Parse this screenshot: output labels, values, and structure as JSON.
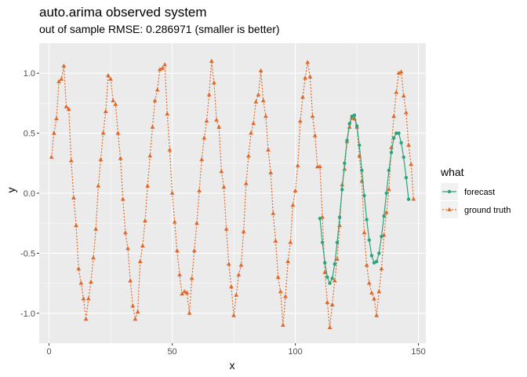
{
  "chart_data": {
    "type": "line",
    "title": "auto.arima observed system",
    "subtitle": "out of sample RMSE: 0.286971 (smaller is better)",
    "xlabel": "x",
    "ylabel": "y",
    "xlim": [
      -4,
      153
    ],
    "ylim": [
      -1.25,
      1.25
    ],
    "x_ticks": [
      0,
      50,
      100,
      150
    ],
    "x_tick_labels": [
      "0",
      "50",
      "100",
      "150"
    ],
    "y_ticks": [
      -1.0,
      -0.5,
      0.0,
      0.5,
      1.0
    ],
    "y_tick_labels": [
      "-1.0",
      "-0.5",
      "0.0",
      "0.5",
      "1.0"
    ],
    "grid": true,
    "legend": {
      "title": "what",
      "position": "right",
      "entries": [
        "forecast",
        "ground truth"
      ]
    },
    "series": [
      {
        "name": "forecast",
        "color": "#2ca47a",
        "marker": "circle",
        "linestyle": "solid",
        "x_start": 110,
        "values": [
          -0.21,
          -0.41,
          -0.58,
          -0.7,
          -0.75,
          -0.71,
          -0.59,
          -0.41,
          -0.2,
          0.03,
          0.25,
          0.44,
          0.58,
          0.64,
          0.65,
          0.56,
          0.4,
          0.19,
          -0.02,
          -0.22,
          -0.39,
          -0.52,
          -0.58,
          -0.57,
          -0.5,
          -0.36,
          -0.19,
          0.0,
          0.19,
          0.34,
          0.46,
          0.5,
          0.5,
          0.42,
          0.3,
          0.13,
          -0.05
        ]
      },
      {
        "name": "ground truth",
        "color": "#e0692a",
        "marker": "triangle",
        "linestyle": "dotted",
        "x_start": 1,
        "values": [
          0.3,
          0.5,
          0.62,
          0.93,
          0.95,
          1.06,
          0.72,
          0.7,
          0.27,
          -0.04,
          -0.27,
          -0.63,
          -0.75,
          -0.88,
          -1.05,
          -0.88,
          -0.74,
          -0.54,
          -0.3,
          0.06,
          0.28,
          0.5,
          0.68,
          0.98,
          0.95,
          0.77,
          0.74,
          0.5,
          0.29,
          -0.05,
          -0.33,
          -0.46,
          -0.73,
          -0.94,
          -1.05,
          -0.99,
          -0.57,
          -0.44,
          -0.23,
          0.06,
          0.31,
          0.55,
          0.77,
          0.86,
          1.03,
          1.04,
          1.07,
          0.66,
          0.36,
          0.0,
          -0.24,
          -0.48,
          -0.68,
          -0.84,
          -0.82,
          -0.83,
          -1.0,
          -0.71,
          -0.48,
          -0.25,
          0.02,
          0.28,
          0.46,
          0.6,
          0.82,
          1.1,
          0.92,
          0.61,
          0.55,
          0.18,
          0.05,
          -0.3,
          -0.59,
          -0.78,
          -1.02,
          -0.85,
          -0.68,
          -0.6,
          -0.32,
          0.08,
          0.31,
          0.5,
          0.58,
          0.76,
          0.82,
          1.02,
          0.77,
          0.64,
          0.36,
          0.17,
          -0.17,
          -0.4,
          -0.7,
          -0.82,
          -1.1,
          -0.86,
          -0.57,
          -0.41,
          -0.1,
          0.02,
          0.23,
          0.6,
          0.8,
          0.96,
          1.09,
          0.97,
          0.64,
          0.48,
          0.22,
          0.22,
          -0.2,
          -0.66,
          -0.91,
          -1.12,
          -0.93,
          -0.73,
          -0.55,
          -0.27,
          0.07,
          0.2,
          0.43,
          0.55,
          0.63,
          0.62,
          0.55,
          0.31,
          0.1,
          -0.33,
          -0.6,
          -0.75,
          -0.83,
          -0.88,
          -1.02,
          -0.82,
          -0.63,
          -0.35,
          -0.16,
          0.03,
          0.38,
          0.64,
          0.84,
          1.0,
          1.01,
          0.81,
          0.67,
          0.4,
          0.24,
          -0.05
        ]
      }
    ]
  }
}
